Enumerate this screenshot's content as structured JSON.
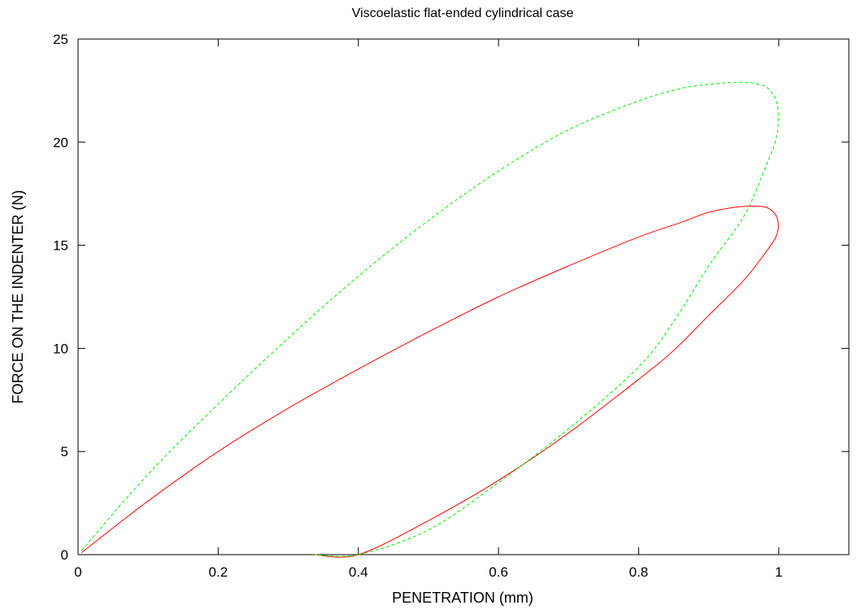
{
  "chart_data": {
    "type": "line",
    "title": "Viscoelastic flat-ended cylindrical case",
    "xlabel": "PENETRATION (mm)",
    "ylabel": "FORCE ON THE INDENTER (N)",
    "xlim": [
      0,
      1.1
    ],
    "ylim": [
      0,
      25
    ],
    "xticks": [
      "0",
      "0.2",
      "0.4",
      "0.6",
      "0.8",
      "1"
    ],
    "xtick_values": [
      0,
      0.2,
      0.4,
      0.6,
      0.8,
      1.0
    ],
    "yticks": [
      "0",
      "5",
      "10",
      "15",
      "20",
      "25"
    ],
    "ytick_values": [
      0,
      5,
      10,
      15,
      20,
      25
    ],
    "grid": false,
    "legend": "none",
    "series": [
      {
        "color": "#ff0000",
        "dash": "solid",
        "x": [
          0.005,
          0.1,
          0.2,
          0.3,
          0.4,
          0.5,
          0.6,
          0.7,
          0.8,
          0.86,
          0.9,
          0.94,
          0.965,
          0.985,
          0.998,
          0.997,
          0.98,
          0.95,
          0.9,
          0.85,
          0.8,
          0.7,
          0.6,
          0.5,
          0.4,
          0.338
        ],
        "y": [
          0.1,
          2.6,
          5.0,
          7.1,
          9.0,
          10.8,
          12.5,
          14.0,
          15.4,
          16.1,
          16.6,
          16.85,
          16.9,
          16.8,
          16.3,
          15.5,
          14.6,
          13.3,
          11.6,
          9.9,
          8.5,
          5.9,
          3.6,
          1.65,
          0.0,
          0.0
        ],
        "x_note": "",
        "y_note": ""
      },
      {
        "color": "#00ee00",
        "dash": "dashed",
        "x": [
          0.005,
          0.1,
          0.2,
          0.3,
          0.4,
          0.5,
          0.6,
          0.7,
          0.8,
          0.86,
          0.9,
          0.94,
          0.965,
          0.985,
          0.998,
          0.997,
          0.98,
          0.95,
          0.9,
          0.85,
          0.8,
          0.7,
          0.6,
          0.5,
          0.4,
          0.338
        ],
        "y": [
          0.2,
          3.9,
          7.3,
          10.5,
          13.5,
          16.2,
          18.6,
          20.6,
          22.0,
          22.6,
          22.8,
          22.9,
          22.85,
          22.6,
          21.8,
          20.3,
          18.7,
          16.4,
          14.0,
          11.3,
          9.1,
          6.1,
          3.5,
          1.2,
          0.0,
          0.0
        ],
        "x_note": "",
        "y_note": ""
      }
    ]
  }
}
